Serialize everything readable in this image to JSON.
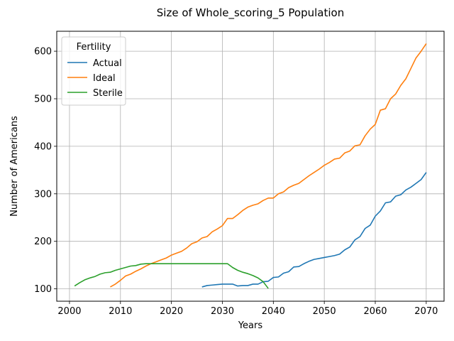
{
  "chart_data": {
    "type": "line",
    "title": "Size of Whole_scoring_5 Population",
    "xlabel": "Years",
    "ylabel": "Number of Americans",
    "xlim": [
      1997.5,
      2073.5
    ],
    "ylim": [
      74,
      642
    ],
    "xticks": [
      2000,
      2010,
      2020,
      2030,
      2040,
      2050,
      2060,
      2070
    ],
    "yticks": [
      100,
      200,
      300,
      400,
      500,
      600
    ],
    "grid": true,
    "legend": {
      "title": "Fertility",
      "position": "top-left"
    },
    "series": [
      {
        "name": "Actual",
        "color": "#1f77b4",
        "x": [
          2026,
          2027,
          2028,
          2029,
          2030,
          2031,
          2032,
          2033,
          2034,
          2035,
          2036,
          2037,
          2038,
          2039,
          2040,
          2041,
          2042,
          2043,
          2044,
          2045,
          2046,
          2047,
          2048,
          2049,
          2050,
          2051,
          2052,
          2053,
          2054,
          2055,
          2056,
          2057,
          2058,
          2059,
          2060,
          2061,
          2062,
          2063,
          2064,
          2065,
          2066,
          2067,
          2068,
          2069,
          2070
        ],
        "values": [
          104,
          107,
          108,
          109,
          110,
          110,
          110,
          106,
          107,
          107,
          110,
          110,
          115,
          116,
          124,
          125,
          133,
          136,
          146,
          147,
          153,
          158,
          162,
          164,
          166,
          168,
          170,
          173,
          182,
          188,
          203,
          210,
          227,
          234,
          253,
          264,
          281,
          283,
          295,
          298,
          308,
          314,
          322,
          330,
          345
        ]
      },
      {
        "name": "Ideal",
        "color": "#ff7f0e",
        "x": [
          2008,
          2009,
          2010,
          2011,
          2012,
          2013,
          2014,
          2015,
          2016,
          2017,
          2018,
          2019,
          2020,
          2021,
          2022,
          2023,
          2024,
          2025,
          2026,
          2027,
          2028,
          2029,
          2030,
          2031,
          2032,
          2033,
          2034,
          2035,
          2036,
          2037,
          2038,
          2039,
          2040,
          2041,
          2042,
          2043,
          2044,
          2045,
          2046,
          2047,
          2048,
          2049,
          2050,
          2051,
          2052,
          2053,
          2054,
          2055,
          2056,
          2057,
          2058,
          2059,
          2060,
          2061,
          2062,
          2063,
          2064,
          2065,
          2066,
          2067,
          2068,
          2069,
          2070
        ],
        "values": [
          104,
          110,
          118,
          127,
          131,
          137,
          142,
          148,
          153,
          157,
          161,
          165,
          171,
          175,
          179,
          186,
          195,
          199,
          207,
          210,
          220,
          226,
          233,
          248,
          248,
          256,
          265,
          272,
          276,
          279,
          286,
          291,
          291,
          300,
          304,
          313,
          318,
          322,
          330,
          338,
          345,
          352,
          360,
          366,
          373,
          375,
          386,
          390,
          401,
          403,
          422,
          436,
          446,
          476,
          479,
          500,
          510,
          528,
          542,
          564,
          586,
          600,
          616
        ]
      },
      {
        "name": "Sterile",
        "color": "#2ca02c",
        "x": [
          2001,
          2002,
          2003,
          2004,
          2005,
          2006,
          2007,
          2008,
          2009,
          2010,
          2011,
          2012,
          2013,
          2014,
          2015,
          2016,
          2017,
          2018,
          2019,
          2020,
          2021,
          2022,
          2023,
          2024,
          2025,
          2026,
          2027,
          2028,
          2029,
          2030,
          2031,
          2032,
          2033,
          2034,
          2035,
          2036,
          2037,
          2038,
          2039
        ],
        "values": [
          106,
          113,
          119,
          123,
          126,
          131,
          134,
          135,
          139,
          142,
          145,
          148,
          149,
          152,
          153,
          153,
          153,
          153,
          153,
          153,
          153,
          153,
          153,
          153,
          153,
          153,
          153,
          153,
          153,
          153,
          153,
          145,
          139,
          135,
          132,
          128,
          123,
          115,
          101
        ]
      }
    ]
  }
}
